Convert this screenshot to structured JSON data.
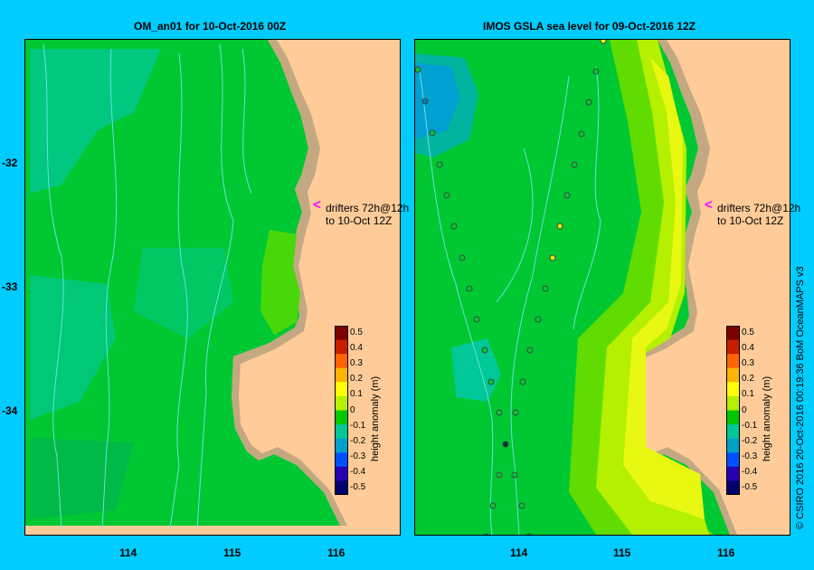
{
  "left_panel": {
    "title": "OM_an01  for 10-Oct-2016 00Z"
  },
  "right_panel": {
    "title": "IMOS GSLA sea level  for 09-Oct-2016 12Z"
  },
  "annotation": {
    "line1": "drifters 72h@12h",
    "line2": "to 10-Oct 12Z",
    "arrow": "<"
  },
  "colorbar": {
    "label": "height anomaly (m)",
    "ticks": [
      "0.5",
      "0.4",
      "0.3",
      "0.2",
      "0.1",
      "0",
      "-0.1",
      "-0.2",
      "-0.3",
      "-0.4",
      "-0.5"
    ],
    "colors": [
      "#7f0000",
      "#c81e00",
      "#ff6400",
      "#ffb400",
      "#ffff00",
      "#b4f000",
      "#00c800",
      "#00c896",
      "#00a0c8",
      "#0050ff",
      "#2800b4",
      "#00006e"
    ]
  },
  "axes": {
    "lat_ticks": [
      "-32",
      "-33",
      "-34"
    ],
    "lon_ticks": [
      "114",
      "115",
      "116"
    ]
  },
  "credit": "© CSIRO 2016   20-Oct-2016 00:19:36 BoM OceanMAPS v3",
  "colors": {
    "land": "#ffcc99",
    "coast": "#c4a882",
    "background": "#00ccff"
  }
}
